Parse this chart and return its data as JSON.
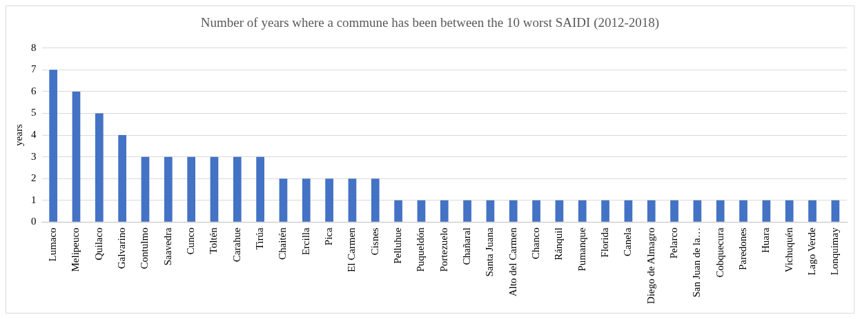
{
  "chart_data": {
    "type": "bar",
    "title": "Number of years where a commune has been between the 10 worst SAIDI (2012-2018)",
    "ylabel": "years",
    "categories": [
      "Lumaco",
      "Melipeuco",
      "Quilaco",
      "Galvarino",
      "Contulmo",
      "Saavedra",
      "Cunco",
      "Toltén",
      "Carahue",
      "Tirúa",
      "Chaitén",
      "Ercilla",
      "Pica",
      "El Carmen",
      "Cisnes",
      "Pelluhue",
      "Puqueldón",
      "Portezuelo",
      "Chañaral",
      "Santa Juana",
      "Alto del Carmen",
      "Chanco",
      "Ránquil",
      "Pumanque",
      "Florida",
      "Canela",
      "Diego de Almagro",
      "Pelarco",
      "San Juan de la…",
      "Cobquecura",
      "Paredones",
      "Huara",
      "Vichuquén",
      "Lago Verde",
      "Lonquimay"
    ],
    "values": [
      7,
      6,
      5,
      4,
      3,
      3,
      3,
      3,
      3,
      3,
      2,
      2,
      2,
      2,
      2,
      1,
      1,
      1,
      1,
      1,
      1,
      1,
      1,
      1,
      1,
      1,
      1,
      1,
      1,
      1,
      1,
      1,
      1,
      1,
      1
    ],
    "color": "#4472c4",
    "ylim": [
      0,
      8
    ],
    "yticks": [
      0,
      1,
      2,
      3,
      4,
      5,
      6,
      7,
      8
    ],
    "grid": "y",
    "legend": false
  }
}
